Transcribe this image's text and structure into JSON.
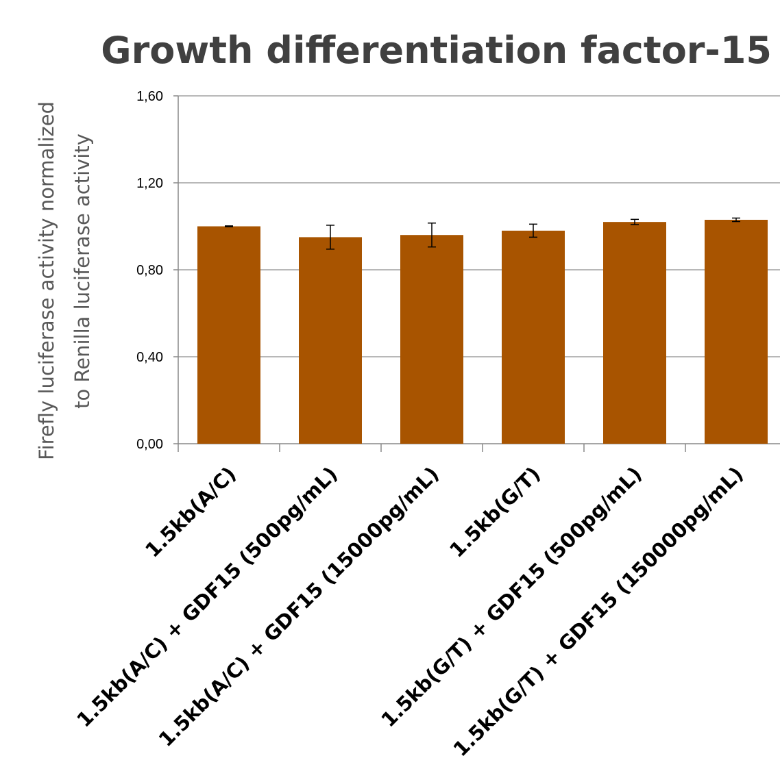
{
  "chart_data": {
    "type": "bar",
    "title": "Growth differentiation factor-15",
    "xlabel": "",
    "ylabel_lines": [
      "Firefly luciferase  activity normalized",
      "to Renilla luciferase activity"
    ],
    "categories": [
      "1.5kb(A/C)",
      "1.5kb(A/C) + GDF15 (500pg/mL)",
      "1.5kb(A/C) + GDF15 (15000pg/mL)",
      "1.5kb(G/T)",
      "1.5kb(G/T) + GDF15 (500pg/mL)",
      "1.5kb(G/T) + GDF15 (150000pg/mL)"
    ],
    "values": [
      1.0,
      0.95,
      0.96,
      0.98,
      1.02,
      1.03
    ],
    "errors": [
      0.002,
      0.055,
      0.055,
      0.03,
      0.012,
      0.008
    ],
    "ylim": [
      0,
      1.6
    ],
    "yticks": [
      0,
      0.4,
      0.8,
      1.2,
      1.6
    ],
    "ytick_labels": [
      "0,00",
      "0,40",
      "0,80",
      "1,20",
      "1,60"
    ],
    "grid": true,
    "bar_color": "#A85400",
    "grid_color": "#A0A0A0",
    "axis_color": "#888888"
  }
}
